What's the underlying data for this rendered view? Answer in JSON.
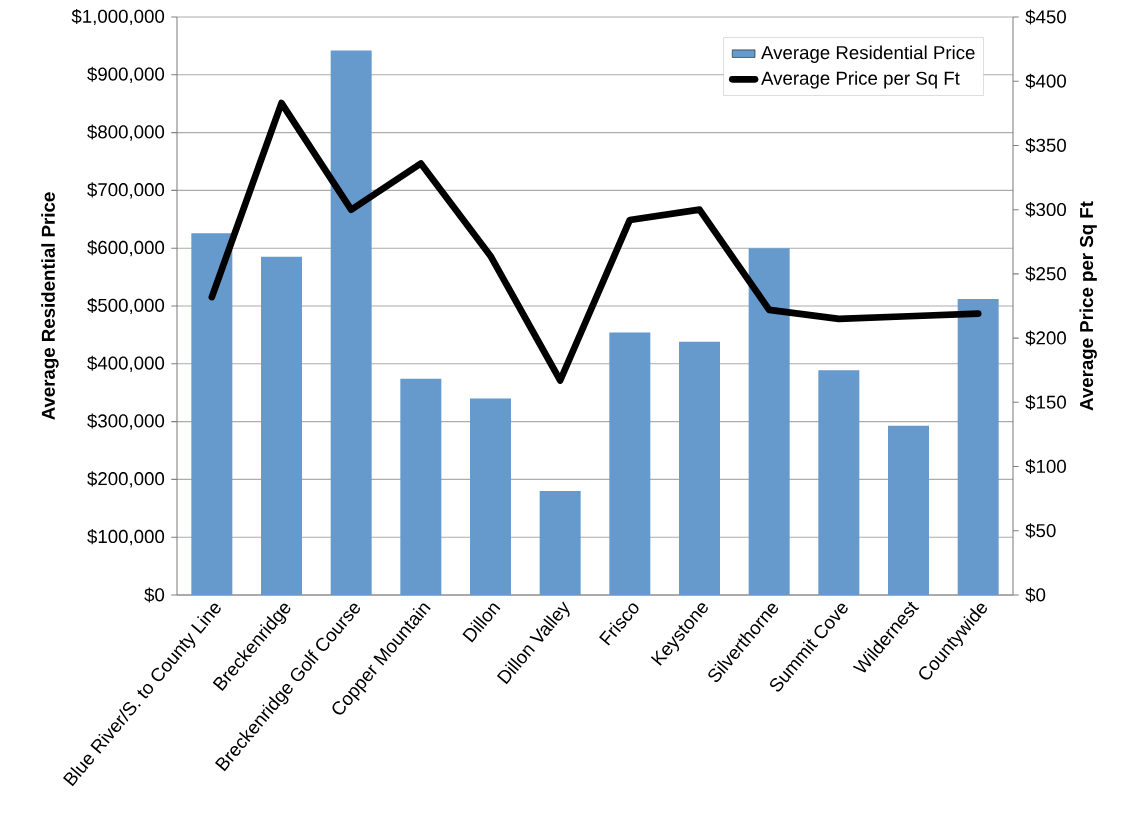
{
  "chart_data": {
    "type": "bar",
    "categories": [
      "Blue River/S. to County Line",
      "Breckenridge",
      "Breckenridge Golf Course",
      "Copper Mountain",
      "Dillon",
      "Dillon Valley",
      "Frisco",
      "Keystone",
      "Silverthorne",
      "Summit Cove",
      "Wildernest",
      "Countywide"
    ],
    "ylabel": "Average Residential Price",
    "y2label": "Average Price per Sq Ft",
    "ylim": [
      0,
      1000000
    ],
    "yticks": [
      {
        "value": 0,
        "label": "$0"
      },
      {
        "value": 100000,
        "label": "$100,000"
      },
      {
        "value": 200000,
        "label": "$200,000"
      },
      {
        "value": 300000,
        "label": "$300,000"
      },
      {
        "value": 400000,
        "label": "$400,000"
      },
      {
        "value": 500000,
        "label": "$500,000"
      },
      {
        "value": 600000,
        "label": "$600,000"
      },
      {
        "value": 700000,
        "label": "$700,000"
      },
      {
        "value": 800000,
        "label": "$800,000"
      },
      {
        "value": 900000,
        "label": "$900,000"
      },
      {
        "value": 1000000,
        "label": "$1,000,000"
      }
    ],
    "y2lim": [
      0,
      450
    ],
    "y2ticks": [
      {
        "value": 0,
        "label": "$0"
      },
      {
        "value": 50,
        "label": "$50"
      },
      {
        "value": 100,
        "label": "$100"
      },
      {
        "value": 150,
        "label": "$150"
      },
      {
        "value": 200,
        "label": "$200"
      },
      {
        "value": 250,
        "label": "$250"
      },
      {
        "value": 300,
        "label": "$300"
      },
      {
        "value": 350,
        "label": "$350"
      },
      {
        "value": 400,
        "label": "$400"
      },
      {
        "value": 450,
        "label": "$450"
      }
    ],
    "grid": "y",
    "legend": "top right",
    "series": [
      {
        "name": "Average Residential Price",
        "color": "#6699cc",
        "values": [
          626000,
          585000,
          942000,
          374000,
          340000,
          180000,
          454000,
          438000,
          600000,
          389000,
          293000,
          512000
        ]
      },
      {
        "name": "Average Price per Sq Ft",
        "type": "line",
        "axis": "y2",
        "color": "#000000",
        "values": [
          232,
          383,
          300,
          336,
          264,
          167,
          292,
          300,
          222,
          215,
          217,
          219
        ]
      }
    ]
  }
}
